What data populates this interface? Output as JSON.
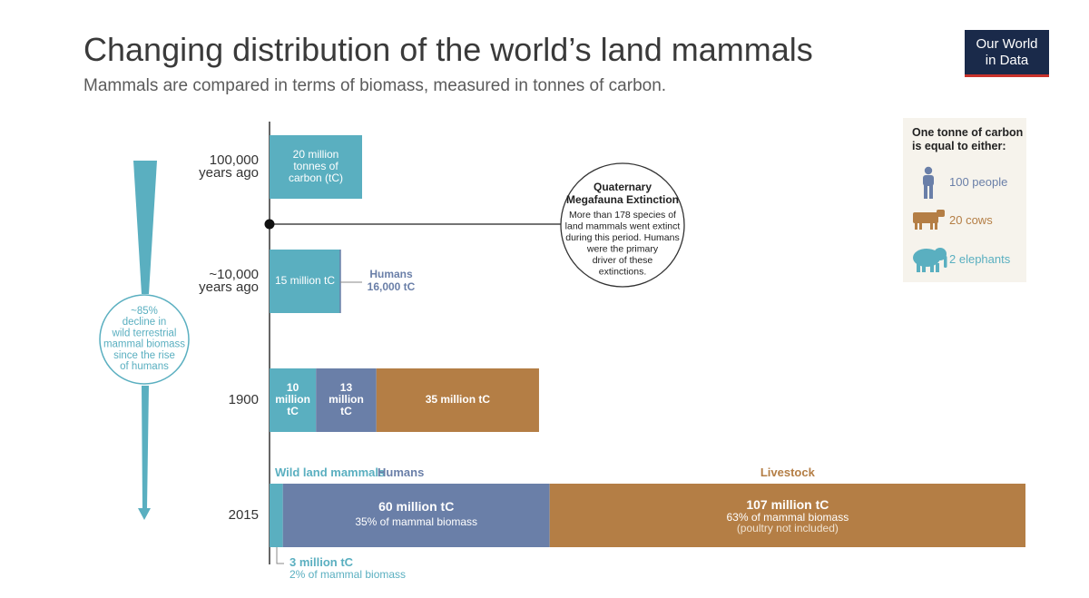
{
  "title": "Changing distribution of the world’s land mammals",
  "subtitle": "Mammals are compared in terms of biomass, measured in tonnes of carbon.",
  "logo": {
    "line1": "Our World",
    "line2": "in Data"
  },
  "colors": {
    "wild": "#5aafc0",
    "humans": "#6a7fa8",
    "livestock": "#b47e45",
    "axis": "#333333",
    "legend_bg": "#f6f3ec"
  },
  "arrow": {
    "label": [
      "~85%",
      "decline in",
      "wild terrestrial",
      "mammal biomass",
      "since the rise",
      "of humans"
    ]
  },
  "extinction": {
    "title": [
      "Quaternary",
      "Megafauna Extinction"
    ],
    "body": [
      "More than 178 species of",
      "land mammals went extinct",
      "during this period. Humans",
      "were the primary",
      "driver of these",
      "extinctions."
    ]
  },
  "legend": {
    "title": [
      "One tonne of carbon",
      "is equal to either:"
    ],
    "items": [
      {
        "icon": "person-icon",
        "label": "100 people",
        "color": "#6a7fa8"
      },
      {
        "icon": "cow-icon",
        "label": "20 cows",
        "color": "#b47e45"
      },
      {
        "icon": "elephant-icon",
        "label": "2 elephants",
        "color": "#5aafc0"
      }
    ]
  },
  "chart_data": {
    "type": "bar",
    "unit": "tC",
    "categories": [
      {
        "name": "100,000 years ago",
        "label_lines": [
          "100,000",
          "years ago"
        ]
      },
      {
        "name": "~10,000 years ago",
        "label_lines": [
          "~10,000",
          "years ago"
        ]
      },
      {
        "name": "1900",
        "label_lines": [
          "1900"
        ]
      },
      {
        "name": "2015",
        "label_lines": [
          "2015"
        ]
      }
    ],
    "series_names": [
      "Wild land mammals",
      "Humans",
      "Livestock"
    ],
    "values_million_tC": {
      "100,000 years ago": {
        "wild": 20
      },
      "~10,000 years ago": {
        "wild": 15,
        "humans": 0.016
      },
      "1900": {
        "wild": 10,
        "humans": 13,
        "livestock": 35
      },
      "2015": {
        "wild": 3,
        "humans": 60,
        "livestock": 107
      }
    },
    "bar_labels": {
      "b0_wild": [
        "20 million",
        "tonnes of",
        "carbon (tC)"
      ],
      "b1_wild": [
        "15 million tC"
      ],
      "b1_humans": [
        "Humans",
        "16,000 tC"
      ],
      "b2_wild": [
        "10",
        "million",
        "tC"
      ],
      "b2_humans": [
        "13",
        "million",
        "tC"
      ],
      "b2_livestock": [
        "35 million tC"
      ],
      "b3_wild": [
        "3 million tC",
        "2% of mammal biomass"
      ],
      "b3_humans": [
        "60 million tC",
        "35% of mammal biomass"
      ],
      "b3_livestock": [
        "107 million tC",
        "63% of mammal biomass",
        "(poultry not included)"
      ]
    }
  }
}
